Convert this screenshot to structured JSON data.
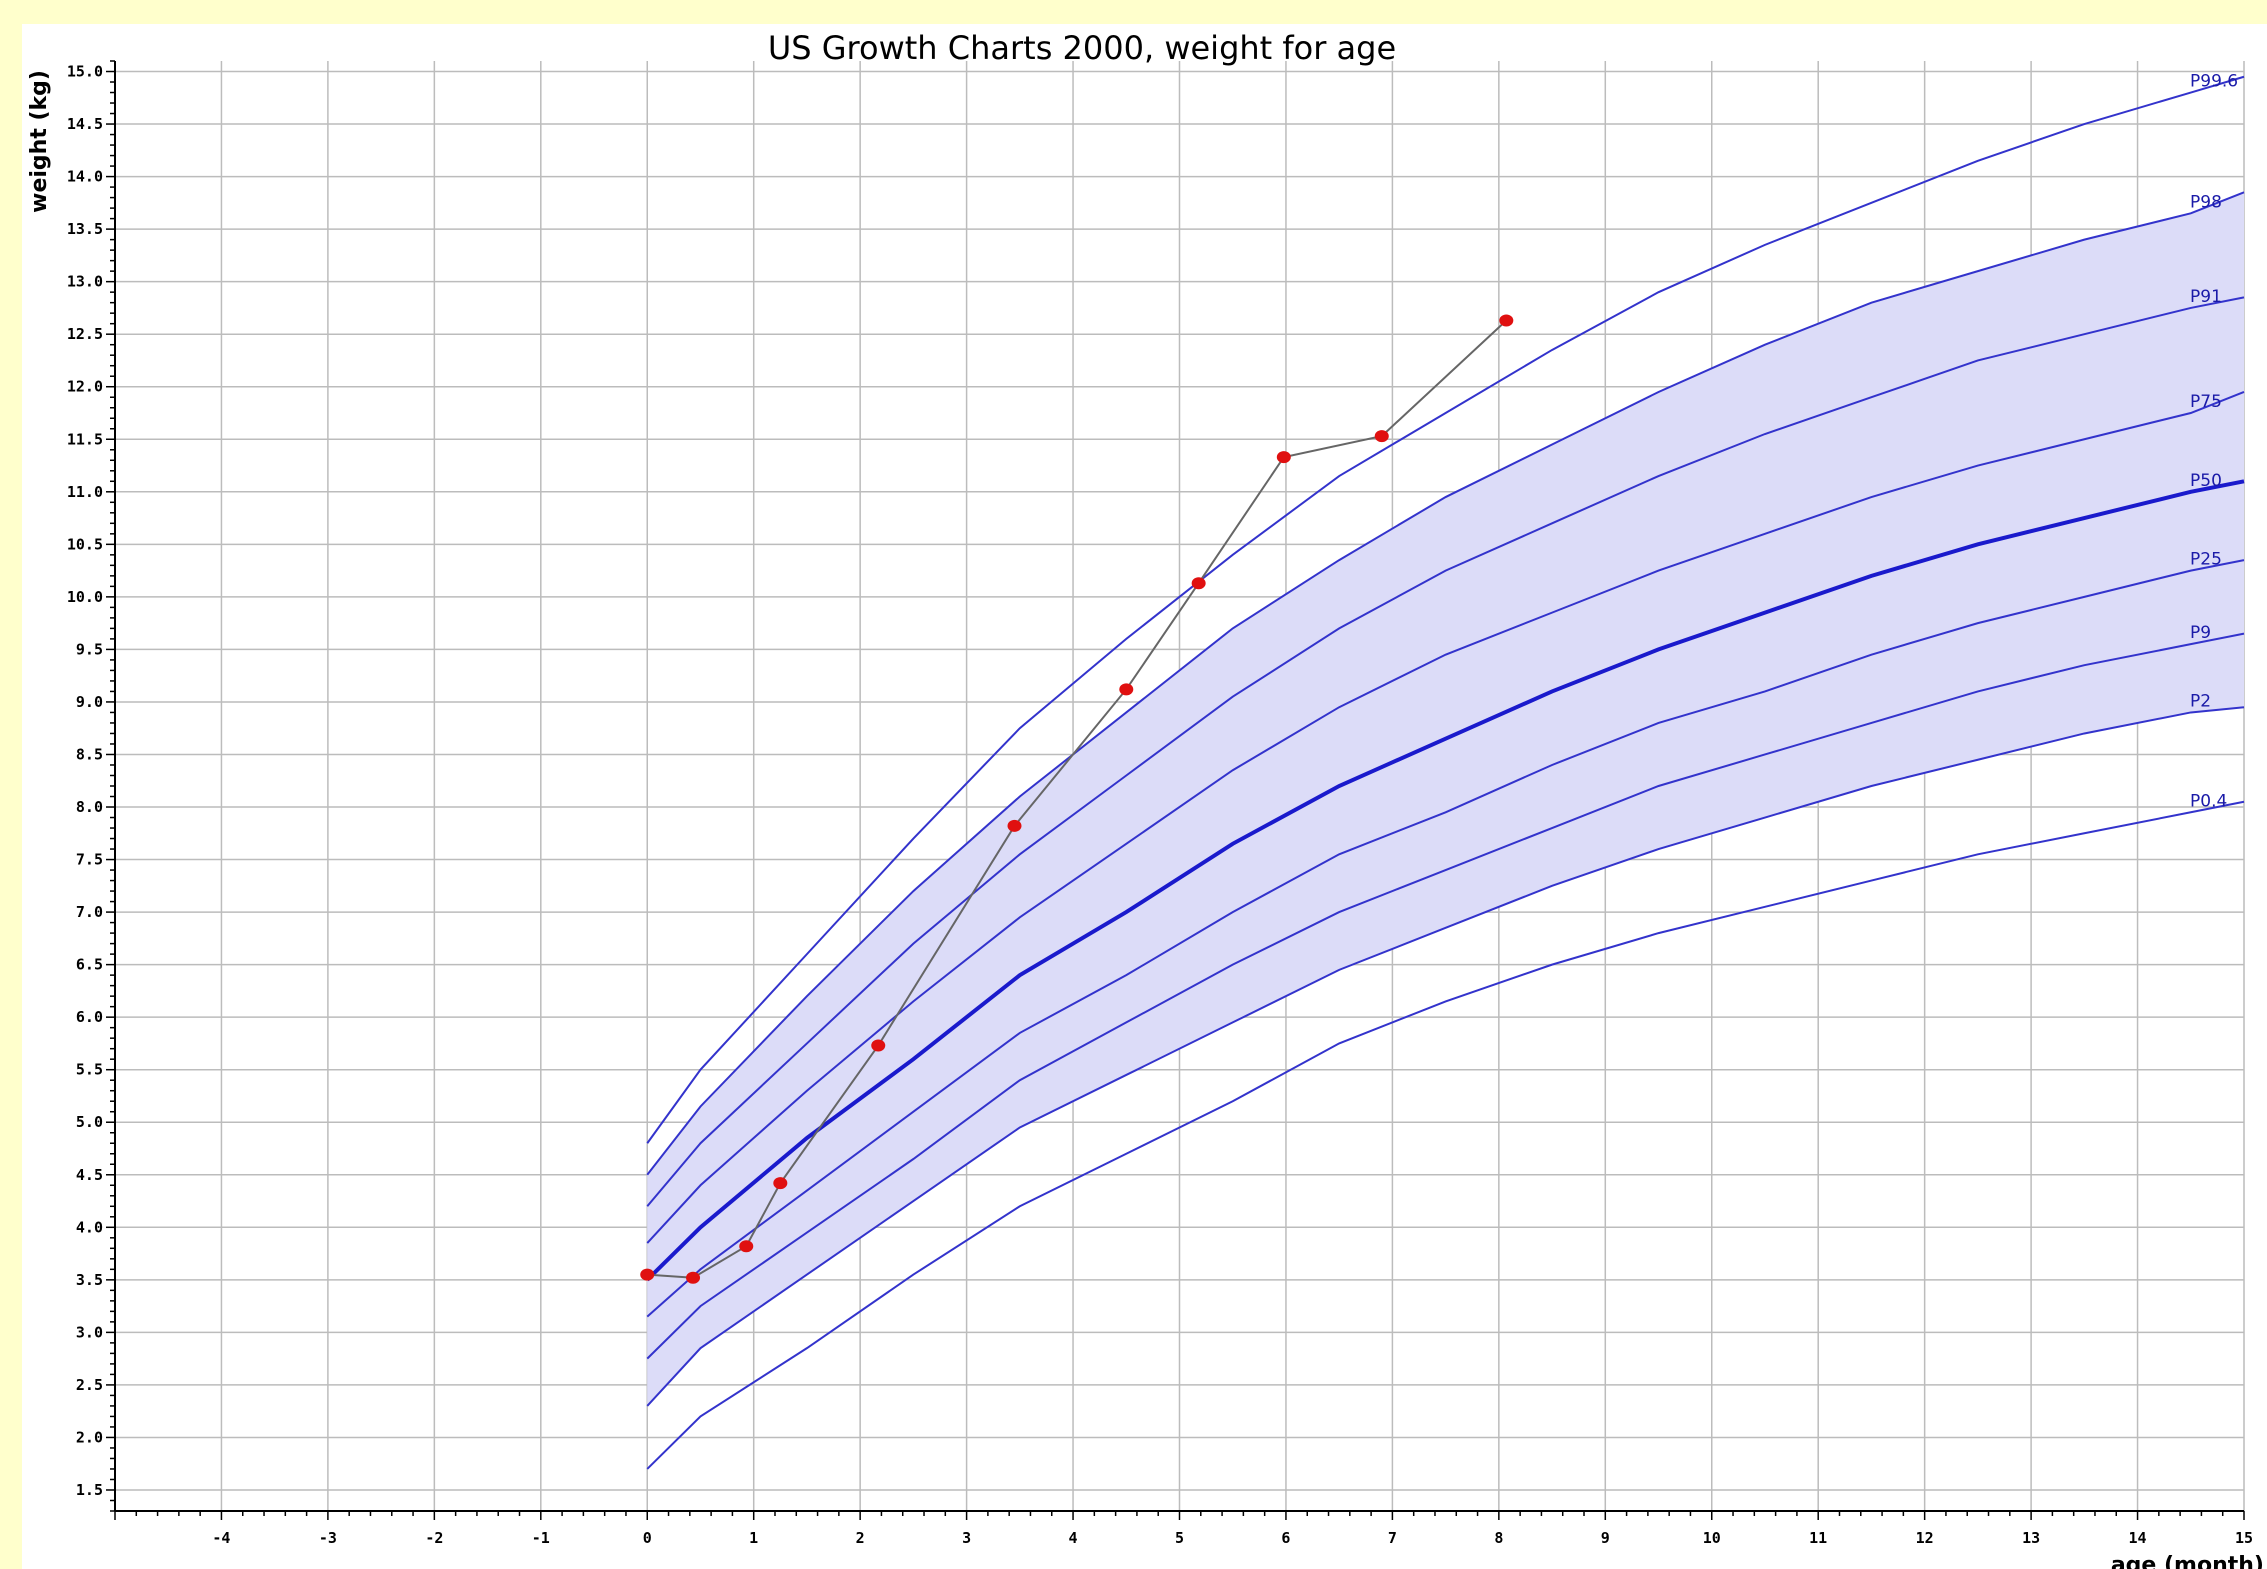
{
  "chart_data": {
    "type": "line",
    "title": "US Growth Charts 2000, weight for age",
    "xlabel": "age (month)",
    "ylabel": "weight (kg)",
    "xlim": [
      -5,
      15
    ],
    "ylim": [
      1.3,
      15.1
    ],
    "x_ticks": [
      -4,
      -3,
      -2,
      -1,
      0,
      1,
      2,
      3,
      4,
      5,
      6,
      7,
      8,
      9,
      10,
      11,
      12,
      13,
      14,
      15
    ],
    "y_ticks": [
      1.5,
      2.0,
      2.5,
      3.0,
      3.5,
      4.0,
      4.5,
      5.0,
      5.5,
      6.0,
      6.5,
      7.0,
      7.5,
      8.0,
      8.5,
      9.0,
      9.5,
      10.0,
      10.5,
      11.0,
      11.5,
      12.0,
      12.5,
      13.0,
      13.5,
      14.0,
      14.5,
      15.0
    ],
    "grid": true,
    "colors": {
      "curve": "#3333cc",
      "median": "#1a1acc",
      "band": "#dcdcf8",
      "points": "#e01010",
      "patient_line": "#666666",
      "grid": "#bcbcbc"
    },
    "percentile_x": [
      0,
      0.5,
      1.5,
      2.5,
      3.5,
      4.5,
      5.5,
      6.5,
      7.5,
      8.5,
      9.5,
      10.5,
      11.5,
      12.5,
      13.5,
      14.5,
      15
    ],
    "percentiles": [
      {
        "name": "P99.6",
        "values": [
          4.8,
          5.5,
          6.6,
          7.7,
          8.75,
          9.6,
          10.4,
          11.15,
          11.75,
          12.35,
          12.9,
          13.35,
          13.75,
          14.15,
          14.5,
          14.8,
          14.95
        ]
      },
      {
        "name": "P98",
        "values": [
          4.5,
          5.15,
          6.2,
          7.2,
          8.1,
          8.9,
          9.7,
          10.35,
          10.95,
          11.45,
          11.95,
          12.4,
          12.8,
          13.1,
          13.4,
          13.65,
          13.85
        ]
      },
      {
        "name": "P91",
        "values": [
          4.2,
          4.8,
          5.75,
          6.7,
          7.55,
          8.3,
          9.05,
          9.7,
          10.25,
          10.7,
          11.15,
          11.55,
          11.9,
          12.25,
          12.5,
          12.75,
          12.85
        ]
      },
      {
        "name": "P75",
        "values": [
          3.85,
          4.4,
          5.3,
          6.15,
          6.95,
          7.65,
          8.35,
          8.95,
          9.45,
          9.85,
          10.25,
          10.6,
          10.95,
          11.25,
          11.5,
          11.75,
          11.95
        ]
      },
      {
        "name": "P50",
        "values": [
          3.5,
          4.0,
          4.85,
          5.6,
          6.4,
          7.0,
          7.65,
          8.2,
          8.65,
          9.1,
          9.5,
          9.85,
          10.2,
          10.5,
          10.75,
          11.0,
          11.1
        ]
      },
      {
        "name": "P25",
        "values": [
          3.15,
          3.6,
          4.35,
          5.1,
          5.85,
          6.4,
          7.0,
          7.55,
          7.95,
          8.4,
          8.8,
          9.1,
          9.45,
          9.75,
          10.0,
          10.25,
          10.35
        ]
      },
      {
        "name": "P9",
        "values": [
          2.75,
          3.25,
          3.95,
          4.65,
          5.4,
          5.95,
          6.5,
          7.0,
          7.4,
          7.8,
          8.2,
          8.5,
          8.8,
          9.1,
          9.35,
          9.55,
          9.65
        ]
      },
      {
        "name": "P2",
        "values": [
          2.3,
          2.85,
          3.55,
          4.25,
          4.95,
          5.45,
          5.95,
          6.45,
          6.85,
          7.25,
          7.6,
          7.9,
          8.2,
          8.45,
          8.7,
          8.9,
          8.95
        ]
      },
      {
        "name": "P0.4",
        "values": [
          1.7,
          2.2,
          2.85,
          3.55,
          4.2,
          4.7,
          5.2,
          5.75,
          6.15,
          6.5,
          6.8,
          7.05,
          7.3,
          7.55,
          7.75,
          7.95,
          8.05
        ]
      }
    ],
    "measurements": {
      "x": [
        0,
        0.43,
        0.93,
        1.25,
        2.17,
        3.45,
        4.5,
        5.18,
        5.98,
        6.9,
        8.07
      ],
      "y": [
        3.55,
        3.52,
        3.82,
        4.42,
        5.73,
        7.82,
        9.12,
        10.13,
        11.33,
        11.53,
        12.63
      ]
    },
    "curve_labels": [
      "P99.6",
      "P98",
      "P91",
      "P75",
      "P50",
      "P25",
      "P9",
      "P2",
      "P0.4"
    ]
  }
}
